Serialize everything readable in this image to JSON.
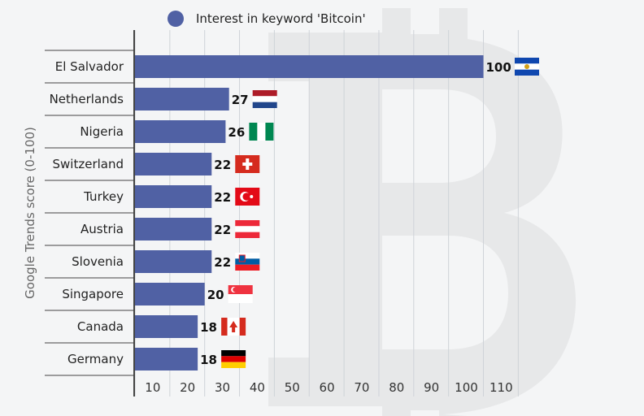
{
  "chart_data": {
    "type": "bar",
    "orientation": "horizontal",
    "legend": {
      "label": "Interest in keyword 'Bitcoin'",
      "placement": "top"
    },
    "ylabel": "Google Trends score (0-100)",
    "xlabel": "",
    "xlim": [
      0,
      110
    ],
    "x_ticks": [
      10,
      20,
      30,
      40,
      50,
      60,
      70,
      80,
      90,
      100,
      110
    ],
    "grid": true,
    "bar_color": "#5061a4",
    "categories": [
      "El Salvador",
      "Netherlands",
      "Nigeria",
      "Switzerland",
      "Turkey",
      "Austria",
      "Slovenia",
      "Singapore",
      "Canada",
      "Germany"
    ],
    "values": [
      100,
      27,
      26,
      22,
      22,
      22,
      22,
      20,
      18,
      18
    ],
    "flags": [
      "el-salvador",
      "netherlands",
      "nigeria",
      "switzerland",
      "turkey",
      "austria",
      "slovenia",
      "singapore",
      "canada",
      "germany"
    ],
    "watermark": "bitcoin-logo"
  }
}
